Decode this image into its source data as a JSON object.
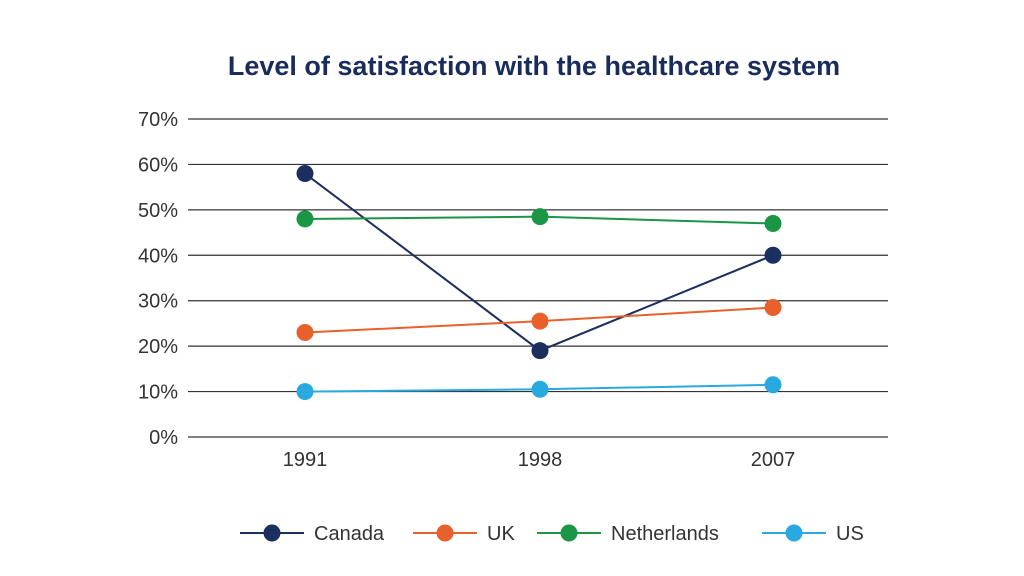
{
  "chart_data": {
    "type": "line",
    "title": "Level of satisfaction with the healthcare system",
    "xlabel": "",
    "ylabel": "",
    "categories": [
      "1991",
      "1998",
      "2007"
    ],
    "ylim": [
      0,
      70
    ],
    "yticks": [
      "0%",
      "10%",
      "20%",
      "30%",
      "40%",
      "50%",
      "60%",
      "70%"
    ],
    "grid": true,
    "legend_position": "bottom",
    "series": [
      {
        "name": "Canada",
        "color": "#1b2f5e",
        "values": [
          58,
          19,
          40
        ]
      },
      {
        "name": "UK",
        "color": "#e8602c",
        "values": [
          23,
          25.5,
          28.5
        ]
      },
      {
        "name": "Netherlands",
        "color": "#1a9645",
        "values": [
          48,
          48.5,
          47
        ]
      },
      {
        "name": "US",
        "color": "#2aa8e0",
        "values": [
          10,
          10.5,
          11.5
        ]
      }
    ]
  }
}
